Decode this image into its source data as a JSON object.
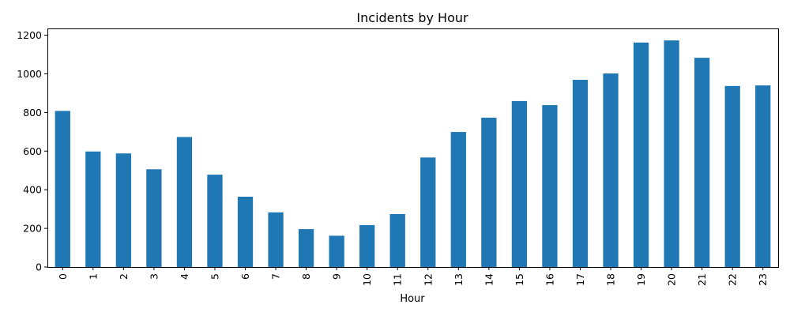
{
  "chart_data": {
    "type": "bar",
    "title": "Incidents by Hour",
    "xlabel": "Hour",
    "ylabel": "",
    "categories": [
      "0",
      "1",
      "2",
      "3",
      "4",
      "5",
      "6",
      "7",
      "8",
      "9",
      "10",
      "11",
      "12",
      "13",
      "14",
      "15",
      "16",
      "17",
      "18",
      "19",
      "20",
      "21",
      "22",
      "23"
    ],
    "values": [
      808,
      598,
      588,
      506,
      673,
      478,
      364,
      283,
      196,
      162,
      217,
      274,
      567,
      699,
      773,
      859,
      838,
      969,
      1002,
      1162,
      1173,
      1083,
      937,
      940
    ],
    "ylim": [
      0,
      1235
    ],
    "yticks": [
      0,
      200,
      400,
      600,
      800,
      1000,
      1200
    ],
    "xtick_rotation": "vertical",
    "legend": "none",
    "grid": false,
    "bar_color": "#1f77b4"
  }
}
